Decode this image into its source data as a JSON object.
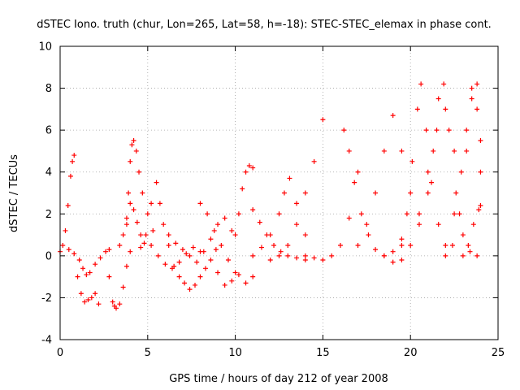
{
  "chart_data": {
    "type": "scatter",
    "title": "dSTEC Iono. truth (chur, Lon=265, Lat=58, h=-18): STEC-STEC_elemax in phase cont.",
    "xlabel": "GPS time / hours of day 212 of year 2008",
    "ylabel": "dSTEC  / TECUs",
    "xlim": [
      0,
      25
    ],
    "ylim": [
      -4,
      10
    ],
    "xticks": [
      "0",
      "5",
      "10",
      "15",
      "20",
      "25"
    ],
    "yticks": [
      "-4",
      "-2",
      "0",
      "2",
      "4",
      "6",
      "8",
      "10"
    ],
    "grid": true,
    "legend": "none",
    "marker": "+",
    "color": "#ff0000",
    "series": [
      {
        "x": [
          0.0,
          0.15,
          0.3,
          0.45,
          0.6,
          0.7,
          0.8
        ],
        "y": [
          0.2,
          0.5,
          1.2,
          2.4,
          3.8,
          4.5,
          4.8
        ]
      },
      {
        "x": [
          0.5,
          0.8,
          1.1,
          1.3,
          1.5,
          1.7,
          2.0,
          2.3,
          2.6,
          2.8
        ],
        "y": [
          0.3,
          0.1,
          -0.2,
          -0.6,
          -0.9,
          -0.8,
          -0.4,
          -0.1,
          0.2,
          0.3
        ]
      },
      {
        "x": [
          1.0,
          1.2,
          1.4,
          1.6,
          1.8,
          2.0,
          2.2
        ],
        "y": [
          -1.0,
          -1.8,
          -2.2,
          -2.1,
          -2.0,
          -1.8,
          -2.3
        ]
      },
      {
        "x": [
          2.8,
          3.0,
          3.1,
          3.2,
          3.4,
          3.6,
          3.8,
          4.0
        ],
        "y": [
          -1.0,
          -2.2,
          -2.4,
          -2.5,
          -2.3,
          -1.5,
          -0.5,
          0.2
        ]
      },
      {
        "x": [
          3.8,
          3.9,
          4.0,
          4.1,
          4.2,
          4.35,
          4.5,
          4.7,
          5.0,
          5.3
        ],
        "y": [
          1.5,
          3.0,
          4.5,
          5.3,
          5.5,
          5.0,
          4.0,
          3.0,
          2.0,
          1.2
        ]
      },
      {
        "x": [
          3.4,
          3.6,
          3.8,
          4.0,
          4.2,
          4.4,
          4.6,
          4.8
        ],
        "y": [
          0.5,
          1.0,
          1.8,
          2.5,
          2.2,
          1.6,
          1.0,
          0.6
        ]
      },
      {
        "x": [
          4.6,
          4.9,
          5.2,
          5.5,
          5.7,
          5.9,
          6.2
        ],
        "y": [
          0.4,
          1.0,
          2.5,
          3.5,
          2.5,
          1.5,
          0.5
        ]
      },
      {
        "x": [
          6.5,
          6.8,
          7.1,
          7.4,
          7.7,
          8.0,
          8.3,
          8.6,
          8.9
        ],
        "y": [
          -0.5,
          -1.0,
          -1.3,
          -1.6,
          -1.4,
          -1.0,
          -0.6,
          -0.2,
          0.3
        ]
      },
      {
        "x": [
          5.2,
          5.6,
          6.0,
          6.4,
          6.8,
          7.2,
          7.6,
          8.0
        ],
        "y": [
          0.5,
          0.0,
          -0.4,
          -0.6,
          -0.3,
          0.1,
          0.4,
          0.2
        ]
      },
      {
        "x": [
          6.2,
          6.6,
          7.0,
          7.4,
          7.8,
          8.2,
          8.6,
          9.0,
          9.4,
          9.8
        ],
        "y": [
          1.0,
          0.6,
          0.3,
          0.0,
          -0.3,
          0.2,
          0.8,
          1.5,
          1.8,
          1.2
        ]
      },
      {
        "x": [
          8.0,
          8.4,
          8.8,
          9.2,
          9.6,
          10.0
        ],
        "y": [
          2.5,
          2.0,
          1.2,
          0.5,
          -0.2,
          -0.8
        ]
      },
      {
        "x": [
          9.0,
          9.4,
          9.8,
          10.2,
          10.6,
          11.0
        ],
        "y": [
          -0.8,
          -1.4,
          -1.2,
          -0.9,
          -1.3,
          -1.0
        ]
      },
      {
        "x": [
          10.0,
          10.2,
          10.4,
          10.6,
          10.8,
          11.0
        ],
        "y": [
          1.0,
          2.0,
          3.2,
          4.0,
          4.3,
          4.2
        ]
      },
      {
        "x": [
          11.0,
          11.4,
          11.8,
          12.2,
          12.6,
          13.0,
          13.5,
          14.0
        ],
        "y": [
          2.2,
          1.6,
          1.0,
          0.5,
          0.2,
          0.0,
          -0.1,
          -0.2
        ]
      },
      {
        "x": [
          11.0,
          11.5,
          12.0,
          12.5,
          12.8,
          13.1,
          13.5,
          14.0
        ],
        "y": [
          0.0,
          0.4,
          1.0,
          2.0,
          3.0,
          3.7,
          2.5,
          1.0
        ]
      },
      {
        "x": [
          12.0,
          12.5,
          13.0,
          13.5,
          14.0,
          14.5,
          15.0
        ],
        "y": [
          -0.2,
          0.0,
          0.5,
          1.5,
          3.0,
          4.5,
          6.5
        ]
      },
      {
        "x": [
          14.0,
          14.5,
          15.0,
          15.5,
          16.0,
          16.5,
          17.0
        ],
        "y": [
          0.0,
          -0.1,
          -0.2,
          0.0,
          0.5,
          1.8,
          4.0
        ]
      },
      {
        "x": [
          16.2,
          16.5,
          16.8,
          17.2,
          17.6,
          18.0,
          18.5,
          19.0,
          19.5
        ],
        "y": [
          6.0,
          5.0,
          3.5,
          2.0,
          1.0,
          0.3,
          0.0,
          0.2,
          0.8
        ]
      },
      {
        "x": [
          17.0,
          17.5,
          18.0,
          18.5,
          19.0,
          19.5,
          20.0,
          20.5
        ],
        "y": [
          0.5,
          1.5,
          3.0,
          5.0,
          6.7,
          5.0,
          3.0,
          1.5
        ]
      },
      {
        "x": [
          18.5,
          19.0,
          19.5,
          20.0,
          20.5,
          21.0,
          21.5,
          22.0,
          22.5
        ],
        "y": [
          0.0,
          -0.3,
          -0.2,
          0.5,
          2.0,
          4.0,
          6.0,
          7.0,
          5.0
        ]
      },
      {
        "x": [
          19.5,
          19.8,
          20.1,
          20.4,
          20.6,
          20.9,
          21.2,
          21.6,
          22.0
        ],
        "y": [
          0.5,
          2.0,
          4.5,
          7.0,
          8.2,
          6.0,
          3.5,
          1.5,
          0.5
        ]
      },
      {
        "x": [
          21.0,
          21.3,
          21.6,
          21.9,
          22.2,
          22.6,
          23.0,
          23.4,
          23.8
        ],
        "y": [
          3.0,
          5.0,
          7.5,
          8.2,
          6.0,
          3.0,
          1.0,
          0.2,
          0.0
        ]
      },
      {
        "x": [
          22.0,
          22.4,
          22.8,
          23.2,
          23.5,
          23.8,
          24.0
        ],
        "y": [
          0.0,
          0.5,
          2.0,
          5.0,
          8.0,
          7.0,
          4.0
        ]
      },
      {
        "x": [
          22.5,
          22.9,
          23.2,
          23.5,
          23.8,
          24.0
        ],
        "y": [
          2.0,
          4.0,
          6.0,
          7.5,
          8.2,
          5.5
        ]
      },
      {
        "x": [
          23.0,
          23.3,
          23.6,
          23.9,
          24.0
        ],
        "y": [
          0.0,
          0.5,
          1.5,
          2.2,
          2.4
        ]
      }
    ]
  }
}
